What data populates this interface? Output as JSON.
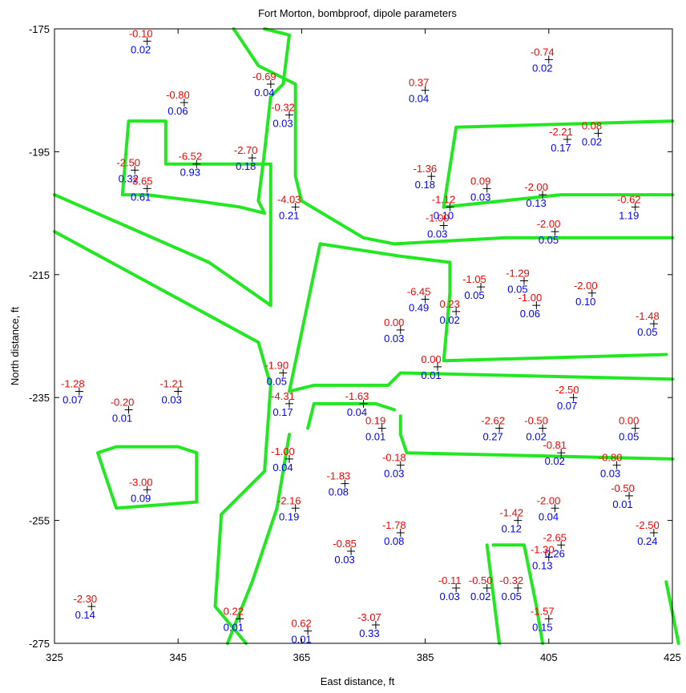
{
  "chart_data": {
    "type": "scatter",
    "title": "Fort Morton, bombproof, dipole parameters",
    "xlabel": "East distance, ft",
    "ylabel": "North distance, ft",
    "xlim": [
      325,
      425
    ],
    "ylim": [
      -275,
      -175
    ],
    "xticks": [
      "325",
      "345",
      "365",
      "385",
      "405",
      "425"
    ],
    "yticks": [
      "-175",
      "-195",
      "-215",
      "-235",
      "-255",
      "-275"
    ],
    "xtick_values": [
      325,
      345,
      365,
      385,
      405,
      425
    ],
    "ytick_values": [
      -175,
      -195,
      -215,
      -235,
      -255,
      -275
    ],
    "grid": false,
    "colors": {
      "outline": "#22e822",
      "red_label": "#ff0000",
      "blue_label": "#0000ff",
      "marker": "#000000"
    },
    "points": [
      {
        "x": 340,
        "y": -177,
        "red": "-0.10",
        "blue": "0.02"
      },
      {
        "x": 405,
        "y": -180,
        "red": "-0.74",
        "blue": "0.02"
      },
      {
        "x": 385,
        "y": -185,
        "red": "0.37",
        "blue": "0.04"
      },
      {
        "x": 360,
        "y": -184,
        "red": "-0.69",
        "blue": "0.04"
      },
      {
        "x": 363,
        "y": -189,
        "red": "-0.32",
        "blue": "0.03"
      },
      {
        "x": 346,
        "y": -187,
        "red": "-0.80",
        "blue": "0.06"
      },
      {
        "x": 408,
        "y": -193,
        "red": "-2.21",
        "blue": "0.17"
      },
      {
        "x": 413,
        "y": -192,
        "red": "0.08",
        "blue": "0.02"
      },
      {
        "x": 338,
        "y": -198,
        "red": "-2.50",
        "blue": "0.32"
      },
      {
        "x": 348,
        "y": -197,
        "red": "-6.52",
        "blue": "0.93"
      },
      {
        "x": 357,
        "y": -196,
        "red": "-2.70",
        "blue": "0.18"
      },
      {
        "x": 340,
        "y": -201,
        "red": "-3.65",
        "blue": "0.61"
      },
      {
        "x": 386,
        "y": -199,
        "red": "-1.36",
        "blue": "0.18"
      },
      {
        "x": 395,
        "y": -201,
        "red": "0.09",
        "blue": "0.03"
      },
      {
        "x": 404,
        "y": -202,
        "red": "-2.00",
        "blue": "0.13"
      },
      {
        "x": 364,
        "y": -204,
        "red": "-4.03",
        "blue": "0.21"
      },
      {
        "x": 389,
        "y": -204,
        "red": "-1.12",
        "blue": "0.10"
      },
      {
        "x": 388,
        "y": -207,
        "red": "-1.00",
        "blue": "0.03"
      },
      {
        "x": 419,
        "y": -204,
        "red": "-0.62",
        "blue": "1.19"
      },
      {
        "x": 406,
        "y": -208,
        "red": "-2.00",
        "blue": "0.05"
      },
      {
        "x": 394,
        "y": -217,
        "red": "-1.05",
        "blue": "0.05"
      },
      {
        "x": 401,
        "y": -216,
        "red": "-1.29",
        "blue": "0.05"
      },
      {
        "x": 412,
        "y": -218,
        "red": "-2.00",
        "blue": "0.10"
      },
      {
        "x": 385,
        "y": -219,
        "red": "-6.45",
        "blue": "0.49"
      },
      {
        "x": 403,
        "y": -220,
        "red": "-1.00",
        "blue": "0.06"
      },
      {
        "x": 390,
        "y": -221,
        "red": "0.23",
        "blue": "0.02"
      },
      {
        "x": 381,
        "y": -224,
        "red": "0.00",
        "blue": "0.03"
      },
      {
        "x": 422,
        "y": -223,
        "red": "-1.48",
        "blue": "0.05"
      },
      {
        "x": 362,
        "y": -231,
        "red": "-1.90",
        "blue": "0.05"
      },
      {
        "x": 387,
        "y": -230,
        "red": "0.00",
        "blue": "0.01"
      },
      {
        "x": 329,
        "y": -234,
        "red": "-1.28",
        "blue": "0.07"
      },
      {
        "x": 337,
        "y": -237,
        "red": "-0.20",
        "blue": "0.01"
      },
      {
        "x": 345,
        "y": -234,
        "red": "-1.21",
        "blue": "0.03"
      },
      {
        "x": 363,
        "y": -236,
        "red": "-4.31",
        "blue": "0.17"
      },
      {
        "x": 375,
        "y": -236,
        "red": "-1.63",
        "blue": "0.04"
      },
      {
        "x": 378,
        "y": -240,
        "red": "0.19",
        "blue": "0.01"
      },
      {
        "x": 409,
        "y": -235,
        "red": "-2.50",
        "blue": "0.07"
      },
      {
        "x": 397,
        "y": -240,
        "red": "-2.62",
        "blue": "0.27"
      },
      {
        "x": 404,
        "y": -240,
        "red": "-0.50",
        "blue": "0.02"
      },
      {
        "x": 419,
        "y": -240,
        "red": "0.00",
        "blue": "0.05"
      },
      {
        "x": 407,
        "y": -244,
        "red": "-0.81",
        "blue": "0.02"
      },
      {
        "x": 363,
        "y": -245,
        "red": "-1.00",
        "blue": "0.04"
      },
      {
        "x": 381,
        "y": -246,
        "red": "-0.18",
        "blue": "0.03"
      },
      {
        "x": 416,
        "y": -246,
        "red": "-0.80",
        "blue": "0.03"
      },
      {
        "x": 340,
        "y": -250,
        "red": "-3.00",
        "blue": "0.09"
      },
      {
        "x": 372,
        "y": -249,
        "red": "-1.83",
        "blue": "0.08"
      },
      {
        "x": 418,
        "y": -251,
        "red": "-0.50",
        "blue": "0.01"
      },
      {
        "x": 364,
        "y": -253,
        "red": "-2.16",
        "blue": "0.19"
      },
      {
        "x": 400,
        "y": -255,
        "red": "-1.42",
        "blue": "0.12"
      },
      {
        "x": 406,
        "y": -253,
        "red": "-2.00",
        "blue": "0.04"
      },
      {
        "x": 381,
        "y": -257,
        "red": "-1.78",
        "blue": "0.08"
      },
      {
        "x": 422,
        "y": -257,
        "red": "-2.50",
        "blue": "0.24"
      },
      {
        "x": 407,
        "y": -259,
        "red": "-2.65",
        "blue": "0.26"
      },
      {
        "x": 373,
        "y": -260,
        "red": "-0.85",
        "blue": "0.03"
      },
      {
        "x": 405,
        "y": -261,
        "red": "-1.30",
        "blue": "0.13"
      },
      {
        "x": 390,
        "y": -266,
        "red": "-0.11",
        "blue": "0.03"
      },
      {
        "x": 395,
        "y": -266,
        "red": "-0.50",
        "blue": "0.02"
      },
      {
        "x": 400,
        "y": -266,
        "red": "-0.32",
        "blue": "0.05"
      },
      {
        "x": 331,
        "y": -269,
        "red": "-2.30",
        "blue": "0.14"
      },
      {
        "x": 355,
        "y": -271,
        "red": "0.22",
        "blue": "0.01"
      },
      {
        "x": 366,
        "y": -273,
        "red": "0.62",
        "blue": "0.01"
      },
      {
        "x": 377,
        "y": -272,
        "red": "-3.07",
        "blue": "0.33"
      },
      {
        "x": 405,
        "y": -271,
        "red": "-1.57",
        "blue": "0.15"
      }
    ],
    "outlines": [
      [
        [
          359,
          -175
        ],
        [
          363,
          -176
        ],
        [
          362,
          -184
        ],
        [
          360,
          -186
        ],
        [
          359,
          -195
        ],
        [
          358,
          -203
        ],
        [
          359,
          -205
        ],
        [
          355,
          -204
        ],
        [
          348,
          -203
        ],
        [
          340,
          -202
        ],
        [
          336,
          -202
        ],
        [
          337,
          -190
        ],
        [
          343,
          -190
        ],
        [
          343,
          -197
        ],
        [
          357,
          -197
        ],
        [
          360,
          -197
        ],
        [
          360,
          -213
        ],
        [
          360,
          -220
        ],
        [
          350,
          -213
        ],
        [
          325,
          -202
        ]
      ],
      [
        [
          354,
          -175
        ],
        [
          358,
          -181
        ],
        [
          364,
          -184
        ],
        [
          364,
          -199
        ],
        [
          365,
          -203
        ],
        [
          375,
          -209
        ],
        [
          380,
          -210
        ],
        [
          398,
          -209
        ],
        [
          425,
          -209
        ]
      ],
      [
        [
          388,
          -204
        ],
        [
          390,
          -191
        ],
        [
          425,
          -190
        ]
      ],
      [
        [
          388,
          -204
        ],
        [
          407,
          -202
        ],
        [
          425,
          -202
        ]
      ],
      [
        [
          325,
          -208
        ],
        [
          358,
          -226
        ],
        [
          360,
          -233
        ],
        [
          359,
          -247
        ],
        [
          352,
          -254
        ],
        [
          351,
          -269
        ],
        [
          356,
          -275
        ]
      ],
      [
        [
          363,
          -234
        ],
        [
          368,
          -210
        ],
        [
          381,
          -212
        ],
        [
          389,
          -213
        ],
        [
          389,
          -218
        ],
        [
          388,
          -229
        ],
        [
          424,
          -228
        ]
      ],
      [
        [
          363,
          -234
        ],
        [
          367,
          -233
        ],
        [
          379,
          -233
        ],
        [
          381,
          -231
        ],
        [
          425,
          -232
        ]
      ],
      [
        [
          381,
          -238
        ],
        [
          381,
          -241
        ],
        [
          382,
          -244
        ],
        [
          425,
          -245
        ]
      ],
      [
        [
          366,
          -240
        ],
        [
          367,
          -236
        ],
        [
          377,
          -236
        ],
        [
          380,
          -237
        ]
      ],
      [
        [
          363,
          -241
        ],
        [
          361,
          -253
        ],
        [
          357,
          -265
        ],
        [
          353,
          -275
        ]
      ],
      [
        [
          345,
          -243
        ],
        [
          348,
          -244
        ],
        [
          348,
          -249
        ],
        [
          348,
          -252
        ],
        [
          335,
          -253
        ],
        [
          332,
          -244
        ],
        [
          335,
          -243
        ],
        [
          345,
          -243
        ]
      ],
      [
        [
          395,
          -259
        ],
        [
          397,
          -275
        ]
      ],
      [
        [
          396,
          -259
        ],
        [
          401,
          -259
        ],
        [
          403,
          -269
        ],
        [
          404,
          -275
        ]
      ],
      [
        [
          424,
          -265
        ],
        [
          425,
          -270
        ],
        [
          426,
          -275
        ]
      ]
    ]
  }
}
